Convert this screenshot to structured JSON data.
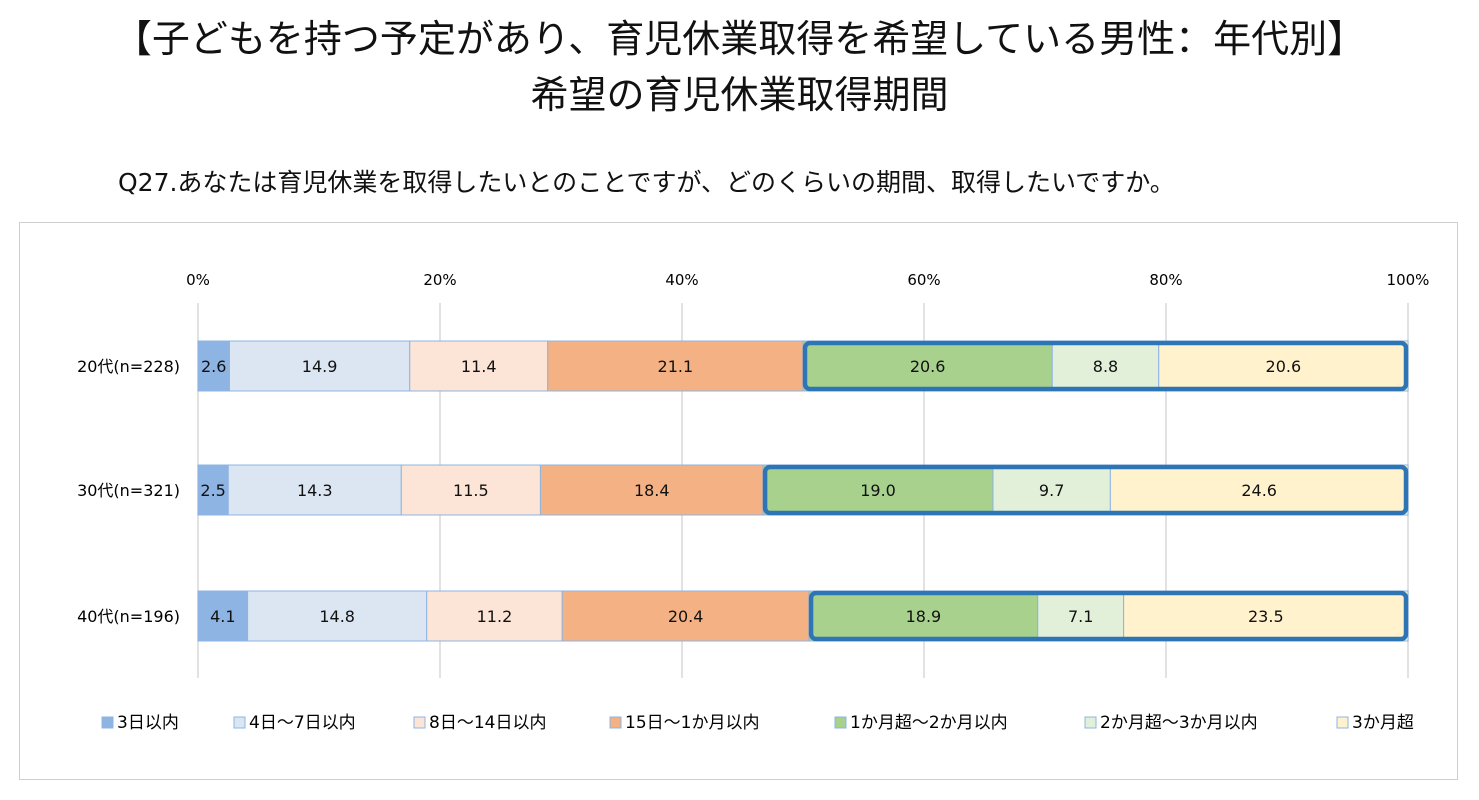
{
  "page": {
    "title_line1": "【子どもを持つ予定があり、育児休業取得を希望している男性：年代別】",
    "title_line2": "希望の育児休業取得期間",
    "question": "Q27.あなたは育児休業を取得したいとのことですが、どのくらいの期間、取得したいですか。"
  },
  "chart_data": {
    "type": "bar",
    "orientation": "horizontal",
    "stacked": true,
    "normalized_percent": true,
    "title": "希望の育児休業取得期間",
    "xlabel": "",
    "ylabel": "",
    "xlim": [
      0,
      100
    ],
    "x_ticks": [
      "0%",
      "20%",
      "40%",
      "60%",
      "80%",
      "100%"
    ],
    "grid": true,
    "legend_position": "bottom",
    "categories": [
      "20代(n=228)",
      "30代(n=321)",
      "40代(n=196)"
    ],
    "series": [
      {
        "name": "3日以内",
        "color": "#8eb4e3",
        "values": [
          2.6,
          2.5,
          4.1
        ]
      },
      {
        "name": "4日～7日以内",
        "color": "#dce6f2",
        "values": [
          14.9,
          14.3,
          14.8
        ]
      },
      {
        "name": "8日～14日以内",
        "color": "#fce4d6",
        "values": [
          11.4,
          11.5,
          11.2
        ]
      },
      {
        "name": "15日～1か月以内",
        "color": "#f4b183",
        "values": [
          21.1,
          18.4,
          20.4
        ]
      },
      {
        "name": "1か月超～2か月以内",
        "color": "#a9d18e",
        "values": [
          20.6,
          19.0,
          18.9
        ]
      },
      {
        "name": "2か月超～3か月以内",
        "color": "#e2f0d9",
        "values": [
          8.8,
          9.7,
          7.1
        ]
      },
      {
        "name": "3か月超",
        "color": "#fff2cc",
        "values": [
          20.6,
          24.6,
          23.5
        ]
      }
    ],
    "highlight": {
      "from_series": 4,
      "to_series": 6,
      "color": "#2e75b6"
    }
  }
}
